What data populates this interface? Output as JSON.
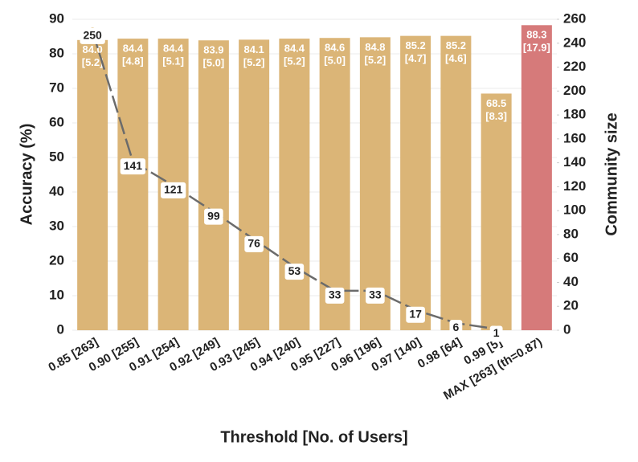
{
  "chart_data": {
    "type": "bar",
    "x_label": "Threshold [No. of Users]",
    "y_label": "Accuracy (%)",
    "y2_label": "Community size",
    "categories": [
      "0.85 [263]",
      "0.90 [255]",
      "0.91 [254]",
      "0.92 [249]",
      "0.93 [245]",
      "0.94 [240]",
      "0.95 [227]",
      "0.96 [196]",
      "0.97 [140]",
      "0.98 [64]",
      "0.99 [5]",
      "MAX [263] (th=0.87)"
    ],
    "values": [
      84.0,
      84.4,
      84.4,
      83.9,
      84.1,
      84.4,
      84.6,
      84.8,
      85.2,
      85.2,
      68.5,
      88.3
    ],
    "value_labels": [
      "84.0",
      "84.4",
      "84.4",
      "83.9",
      "84.1",
      "84.4",
      "84.6",
      "84.8",
      "85.2",
      "85.2",
      "68.5",
      "88.3"
    ],
    "errors": [
      5.2,
      4.8,
      5.1,
      5.0,
      5.2,
      5.2,
      5.0,
      5.2,
      4.7,
      4.6,
      8.3,
      17.9
    ],
    "error_labels": [
      "[5.2]",
      "[4.8]",
      "[5.1]",
      "[5.0]",
      "[5.2]",
      "[5.2]",
      "[5.0]",
      "[5.2]",
      "[4.7]",
      "[4.6]",
      "[8.3]",
      "[17.9]"
    ],
    "colors": [
      "#dbb577",
      "#dbb577",
      "#dbb577",
      "#dbb577",
      "#dbb577",
      "#dbb577",
      "#dbb577",
      "#dbb577",
      "#dbb577",
      "#dbb577",
      "#dbb577",
      "#d67a7a"
    ],
    "series": [
      {
        "color": "#6b6b6b",
        "axis": "y2",
        "values": [
          250,
          141,
          121,
          99,
          76,
          53,
          33,
          33,
          17,
          6,
          1,
          null
        ]
      }
    ],
    "ylim": [
      0,
      90
    ],
    "yticks": [
      0,
      10,
      20,
      30,
      40,
      50,
      60,
      70,
      80,
      90
    ],
    "y2lim": [
      0,
      260
    ],
    "y2ticks": [
      0,
      20,
      40,
      60,
      80,
      100,
      120,
      140,
      160,
      180,
      200,
      220,
      240,
      260
    ],
    "grid": true
  }
}
